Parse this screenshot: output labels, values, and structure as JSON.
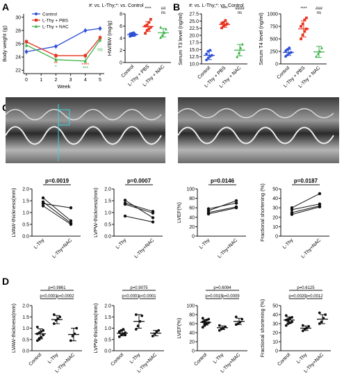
{
  "panel_labels": {
    "A": "A",
    "B": "B",
    "C": "C",
    "D": "D"
  },
  "colors": {
    "control": "#2c4fd6",
    "pbs": "#e8321e",
    "nac": "#3cb24a",
    "black": "#111111",
    "cyan": "#35d6e0"
  },
  "panelA": {
    "legend_note": "#: vs. L-Thy;*: vs. Control",
    "line": {
      "ylabel": "Body weight (g)",
      "xlabel": "Week",
      "xticks": [
        "0",
        "1",
        "2",
        "3",
        "4",
        "5"
      ],
      "yticks": [
        "22",
        "24",
        "26",
        "28",
        "30"
      ],
      "ylim": [
        21.5,
        30.5
      ],
      "legend": [
        "Control",
        "L-Thy + PBS",
        "L-Thy + NAC"
      ],
      "x": [
        0,
        2,
        4,
        5
      ],
      "series": [
        {
          "name": "Control",
          "values": [
            24.8,
            25.6,
            28.0,
            28.3
          ],
          "color": "control"
        },
        {
          "name": "L-Thy + PBS",
          "values": [
            26.3,
            24.2,
            24.2,
            26.9
          ],
          "color": "pbs"
        },
        {
          "name": "L-Thy + NAC",
          "values": [
            25.8,
            23.6,
            23.4,
            26.6
          ],
          "color": "nac"
        }
      ],
      "annotations": [
        {
          "x": 2,
          "y": 22.8,
          "text": "**",
          "color": "pbs"
        },
        {
          "x": 2,
          "y": 22.3,
          "text": "*",
          "color": "nac"
        },
        {
          "x": 4,
          "y": 22.6,
          "text": "****",
          "color": "pbs"
        },
        {
          "x": 4,
          "y": 22.1,
          "text": "***",
          "color": "nac"
        },
        {
          "x": 5,
          "y": 24.9,
          "text": "ns",
          "color": "nac"
        }
      ]
    },
    "dot": {
      "ylabel": "HW/BW (mg/g)",
      "ylim": [
        0,
        8
      ],
      "yticks": [
        "0",
        "2",
        "4",
        "6",
        "8"
      ],
      "categories": [
        "Control",
        "L-Thy + PBS",
        "L-Thy + NAC"
      ],
      "means": [
        4.6,
        5.9,
        4.9
      ],
      "sd": [
        0.3,
        0.8,
        0.7
      ],
      "points": [
        [
          4.3,
          4.4,
          4.5,
          4.6,
          4.7,
          4.8,
          4.9
        ],
        [
          4.8,
          5.3,
          5.5,
          5.8,
          6.0,
          6.2,
          6.6,
          7.1
        ],
        [
          4.1,
          4.5,
          4.9,
          5.5,
          5.8
        ]
      ],
      "sig": [
        [
          "",
          ""
        ],
        [
          "****",
          ""
        ],
        [
          "##",
          "ns"
        ]
      ]
    }
  },
  "panelB": {
    "legend_note": "#: vs. L-Thy;*: vs. Control",
    "t3": {
      "ylabel": "Serum T3 level (ng/ml)",
      "ylim": [
        10,
        27.5
      ],
      "yticks": [
        "10.0",
        "12.5",
        "15.0",
        "17.5",
        "20.0",
        "22.5",
        "25.0",
        "27.5"
      ],
      "categories": [
        "Control",
        "L-Thy + PBS",
        "L-Thy + NAC"
      ],
      "means": [
        13.0,
        23.8,
        14.8
      ],
      "sd": [
        1.5,
        1.0,
        2.0
      ],
      "points": [
        [
          11.4,
          12.1,
          12.6,
          13.0,
          13.5,
          14.4,
          14.8
        ],
        [
          22.6,
          23.2,
          23.6,
          24.0,
          24.2,
          24.5,
          25.2
        ],
        [
          12.5,
          13.8,
          15.6,
          16.9
        ]
      ],
      "sig": [
        [
          "",
          ""
        ],
        [
          "****",
          ""
        ],
        [
          "####",
          "ns"
        ]
      ]
    },
    "t4": {
      "ylabel": "Serum T4 level (ng/ml)",
      "ylim": [
        0,
        1000
      ],
      "yticks": [
        "0",
        "250",
        "500",
        "750",
        "1000"
      ],
      "categories": [
        "Control",
        "L-Thy + PBS",
        "L-Thy + NAC"
      ],
      "means": [
        230,
        700,
        240
      ],
      "sd": [
        60,
        160,
        110
      ],
      "points": [
        [
          150,
          180,
          210,
          230,
          260,
          290,
          320
        ],
        [
          500,
          580,
          650,
          700,
          750,
          800,
          880,
          920
        ],
        [
          150,
          200,
          250,
          320
        ]
      ],
      "sig": [
        [
          "",
          ""
        ],
        [
          "****",
          ""
        ],
        [
          "###",
          "ns"
        ]
      ]
    }
  },
  "panelC": {
    "pvalues": [
      "p=0.0019",
      "p=0.0007",
      "p=0.0146",
      "p=0.0187"
    ],
    "ylabels": [
      "LVAW-thickness(mm)",
      "LVPW-thickness(mm)",
      "LVEF(%)",
      "Fractional shortening (%)"
    ],
    "xcats": [
      "L-Thy",
      "L-Thy+NAC"
    ],
    "plots": [
      {
        "ylim": [
          0,
          2.0
        ],
        "yticks": [
          "0.0",
          "0.5",
          "1.0",
          "1.5",
          "2.0"
        ],
        "pairs": [
          [
            1.62,
            0.65
          ],
          [
            1.45,
            0.55
          ],
          [
            1.38,
            1.2
          ],
          [
            1.28,
            0.5
          ]
        ]
      },
      {
        "ylim": [
          0,
          2.0
        ],
        "yticks": [
          "0.0",
          "0.5",
          "1.0",
          "1.5",
          "2.0"
        ],
        "pairs": [
          [
            1.52,
            0.78
          ],
          [
            1.4,
            1.05
          ],
          [
            1.35,
            0.98
          ],
          [
            0.85,
            0.6
          ]
        ]
      },
      {
        "ylim": [
          0,
          100
        ],
        "yticks": [
          "0",
          "20",
          "40",
          "60",
          "80",
          "100"
        ],
        "pairs": [
          [
            58,
            70
          ],
          [
            54,
            75
          ],
          [
            50,
            62
          ],
          [
            47,
            60
          ]
        ]
      },
      {
        "ylim": [
          0,
          50
        ],
        "yticks": [
          "0",
          "10",
          "20",
          "30",
          "40",
          "50"
        ],
        "pairs": [
          [
            30,
            45
          ],
          [
            28,
            34
          ],
          [
            25,
            32
          ],
          [
            23,
            31
          ]
        ]
      }
    ]
  },
  "panelD": {
    "categories": [
      "Control",
      "L-Thy",
      "L-Thy+NAC"
    ],
    "ylabels": [
      "LVAW-thickness(mm)",
      "LVPW-thickness(mm)",
      "LVEF(%)",
      "Fractional shortening (%)"
    ],
    "plots": [
      {
        "ylim": [
          0,
          2.0
        ],
        "yticks": [
          "0.0",
          "0.5",
          "1.0",
          "1.5",
          "2.0"
        ],
        "means": [
          0.75,
          1.38,
          0.72
        ],
        "sd": [
          0.22,
          0.18,
          0.28
        ],
        "points": [
          [
            0.45,
            0.55,
            0.6,
            0.7,
            0.75,
            0.8,
            0.85,
            0.9,
            1.05,
            0.5
          ],
          [
            1.2,
            1.35,
            1.42,
            1.5,
            1.6
          ],
          [
            0.45,
            0.65,
            0.75,
            1.0
          ]
        ],
        "p_top": "p=0.9861",
        "p_left": "p<0.0001",
        "p_right": "p=0.0002"
      },
      {
        "ylim": [
          0,
          2.0
        ],
        "yticks": [
          "0.0",
          "0.5",
          "1.0",
          "1.5",
          "2.0"
        ],
        "means": [
          0.78,
          1.3,
          0.78
        ],
        "sd": [
          0.12,
          0.3,
          0.12
        ],
        "points": [
          [
            0.62,
            0.7,
            0.75,
            0.8,
            0.85,
            0.9,
            0.95,
            0.7,
            0.8
          ],
          [
            0.95,
            1.1,
            1.3,
            1.55,
            1.6
          ],
          [
            0.65,
            0.75,
            0.85,
            0.9
          ]
        ],
        "p_top": "p=0.9075",
        "p_left": "p<0.0001",
        "p_right": "p<0.0001"
      },
      {
        "ylim": [
          0,
          100
        ],
        "yticks": [
          "0",
          "20",
          "40",
          "60",
          "80",
          "100"
        ],
        "means": [
          63,
          51,
          65
        ],
        "sd": [
          6,
          4,
          7
        ],
        "points": [
          [
            52,
            56,
            60,
            62,
            64,
            66,
            68,
            70,
            72,
            60
          ],
          [
            45,
            48,
            50,
            53,
            56
          ],
          [
            58,
            60,
            63,
            70,
            75
          ]
        ],
        "p_top": "p=0.6094",
        "p_left": "p=0.0015",
        "p_right": "p=0.0009"
      },
      {
        "ylim": [
          0,
          50
        ],
        "yticks": [
          "0",
          "10",
          "20",
          "30",
          "40",
          "50"
        ],
        "means": [
          34,
          25,
          35
        ],
        "sd": [
          3.5,
          2.5,
          5
        ],
        "points": [
          [
            28,
            30,
            31,
            32,
            34,
            35,
            36,
            37,
            39,
            33
          ],
          [
            22,
            24,
            25,
            27,
            28
          ],
          [
            30,
            32,
            36,
            40,
            42
          ]
        ],
        "p_top": "p=0.6125",
        "p_left": "p=0.0020",
        "p_right": "p=0.0012"
      }
    ]
  }
}
